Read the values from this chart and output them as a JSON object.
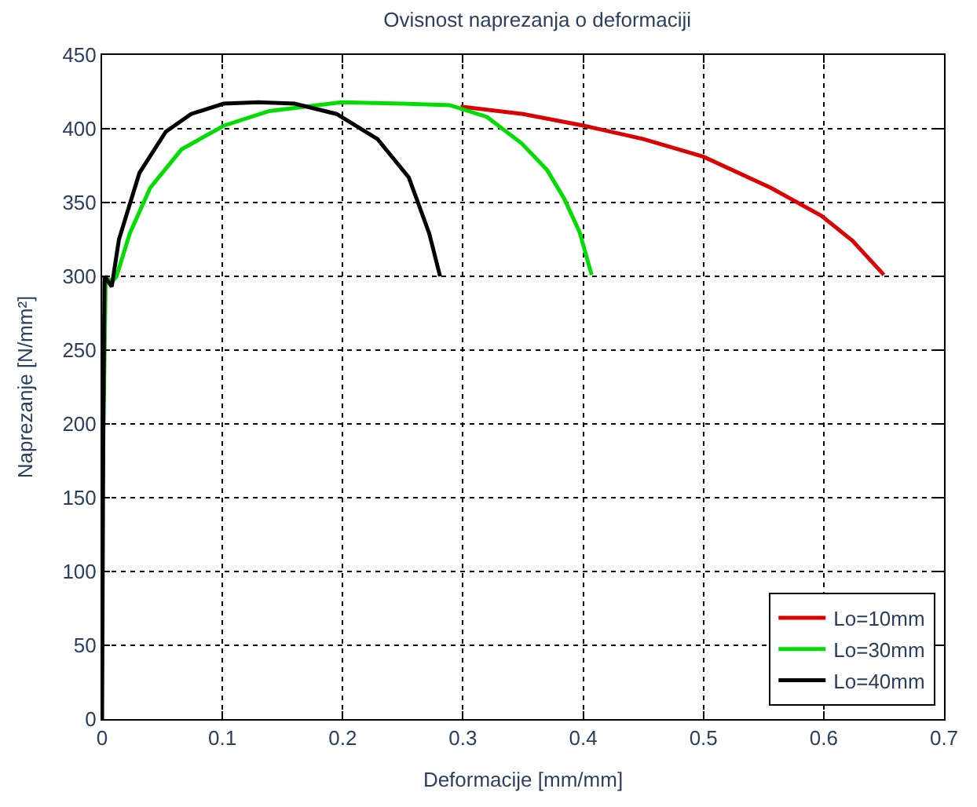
{
  "chart_data": {
    "type": "line",
    "title": "Ovisnost naprezanja o deformaciji",
    "xlabel": "Deformacije [mm/mm]",
    "ylabel": "Naprezanje [N/mm²]",
    "xlim": [
      0,
      0.7
    ],
    "xticks": [
      0,
      0.1,
      0.2,
      0.3,
      0.4,
      0.5,
      0.6,
      0.7
    ],
    "ylim": [
      0,
      450
    ],
    "yticks": [
      0,
      50,
      100,
      150,
      200,
      250,
      300,
      350,
      400,
      450
    ],
    "grid": true,
    "legend": "bottom right",
    "marker": "none",
    "line_style": "solid",
    "series": [
      {
        "name": "Lo=10mm",
        "color": "#dd0000",
        "x": [
          0.298,
          0.35,
          0.401,
          0.45,
          0.5,
          0.556,
          0.598,
          0.624,
          0.65
        ],
        "values": [
          415,
          410,
          402,
          393,
          381,
          360,
          341,
          324,
          301
        ]
      },
      {
        "name": "Lo=30mm",
        "color": "#00dd00",
        "x": [
          0,
          0.003,
          0.008,
          0.012,
          0.023,
          0.04,
          0.066,
          0.101,
          0.139,
          0.199,
          0.25,
          0.289,
          0.32,
          0.349,
          0.37,
          0.384,
          0.397,
          0.407
        ],
        "values": [
          134,
          300,
          296,
          300,
          329,
          360,
          386,
          402,
          412,
          418,
          417,
          416,
          408,
          390,
          372,
          353,
          330,
          301
        ]
      },
      {
        "name": "Lo=40mm",
        "color": "#000000",
        "x": [
          0,
          0.001,
          0.002,
          0.008,
          0.014,
          0.031,
          0.053,
          0.074,
          0.101,
          0.13,
          0.16,
          0.195,
          0.229,
          0.255,
          0.272,
          0.281
        ],
        "values": [
          0,
          200,
          300,
          293,
          325,
          370,
          398,
          410,
          417,
          418,
          417,
          410,
          393,
          367,
          329,
          300
        ]
      }
    ]
  }
}
